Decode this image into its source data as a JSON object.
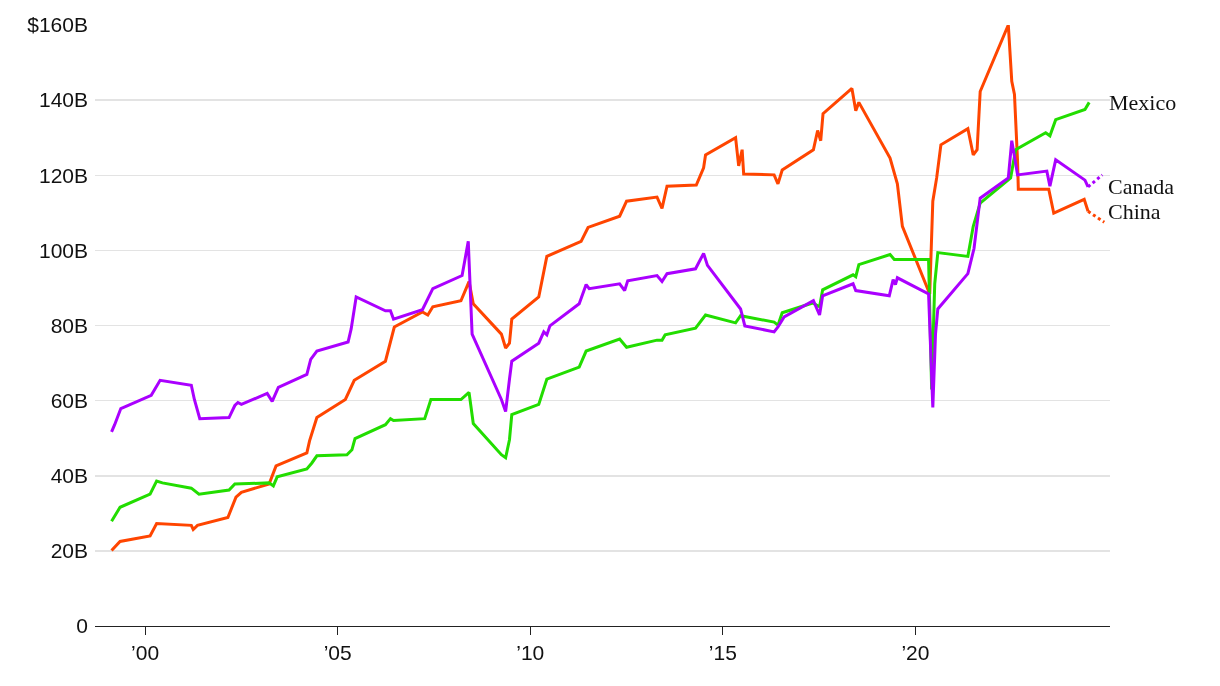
{
  "chart_data": {
    "type": "line",
    "xlim": [
      1998.7,
      2025.05
    ],
    "xticks": [
      {
        "value": 2000,
        "label": "’00"
      },
      {
        "value": 2005,
        "label": "’05"
      },
      {
        "value": 2010,
        "label": "’10"
      },
      {
        "value": 2015,
        "label": "’15"
      },
      {
        "value": 2020,
        "label": "’20"
      }
    ],
    "ylim": [
      0,
      160
    ],
    "yticks": [
      {
        "value": 0,
        "label": "0"
      },
      {
        "value": 20,
        "label": "20B"
      },
      {
        "value": 40,
        "label": "40B"
      },
      {
        "value": 60,
        "label": "60B"
      },
      {
        "value": 80,
        "label": "80B"
      },
      {
        "value": 100,
        "label": "100B"
      },
      {
        "value": 120,
        "label": "120B"
      },
      {
        "value": 140,
        "label": "140B"
      },
      {
        "value": 160,
        "label": "$160B"
      }
    ],
    "grid": "y",
    "legend": false,
    "marker": "none",
    "line_style": "solid",
    "series": [
      {
        "name": "China",
        "color": "#ff4500",
        "x": [
          1999.13,
          1999.35,
          2000.13,
          2000.3,
          2001.2,
          2001.25,
          2001.36,
          2002.15,
          2002.36,
          2002.5,
          2003.22,
          2003.4,
          2004.2,
          2004.27,
          2004.46,
          2005.2,
          2005.43,
          2006.24,
          2006.47,
          2007.2,
          2007.34,
          2007.47,
          2008.2,
          2008.41,
          2008.52,
          2009.25,
          2009.36,
          2009.46,
          2009.52,
          2010.22,
          2010.43,
          2011.32,
          2011.5,
          2012.32,
          2012.5,
          2013.29,
          2013.42,
          2013.55,
          2014.31,
          2014.5,
          2014.55,
          2015.33,
          2015.41,
          2015.5,
          2015.54,
          2016.33,
          2016.43,
          2016.54,
          2017.35,
          2017.46,
          2017.54,
          2017.6,
          2018.35,
          2018.45,
          2018.53,
          2019.34,
          2019.53,
          2019.66,
          2020.37,
          2020.45,
          2020.55,
          2020.66,
          2021.36,
          2021.5,
          2021.6,
          2021.68,
          2022.41,
          2022.5,
          2022.57,
          2022.65,
          2022.67,
          2023.46,
          2023.59,
          2024.38,
          2024.48
        ],
        "values": [
          20.1,
          22.5,
          24,
          27.3,
          26.8,
          25.7,
          26.8,
          28.9,
          34.3,
          35.6,
          37.8,
          42.6,
          46.1,
          49.3,
          55.5,
          60.3,
          65.4,
          70.5,
          79.6,
          83.6,
          82.8,
          85,
          86.6,
          91.7,
          85.8,
          77.7,
          74,
          75.3,
          81.7,
          87.6,
          98.4,
          102.4,
          106.1,
          109.1,
          113.1,
          114.2,
          111.2,
          117.1,
          117.4,
          122,
          125.4,
          130,
          122.5,
          126.8,
          120.3,
          120.1,
          117.7,
          121.4,
          126.8,
          131.9,
          129.2,
          136.4,
          143.1,
          137.2,
          139.4,
          124.6,
          117.7,
          106.4,
          88.4,
          113.1,
          119.3,
          128.1,
          132.4,
          125.4,
          126.8,
          142.3,
          160,
          145,
          141.5,
          123.8,
          116.3,
          116.3,
          109.9,
          113.6,
          110.4
        ]
      },
      {
        "name": "Mexico",
        "color": "#22dd00",
        "x": [
          1999.13,
          1999.35,
          2000.13,
          2000.3,
          2000.45,
          2001.2,
          2001.4,
          2002.18,
          2002.33,
          2003.22,
          2003.33,
          2003.43,
          2004.2,
          2004.33,
          2004.46,
          2005.24,
          2005.37,
          2005.45,
          2006.24,
          2006.37,
          2006.45,
          2007.26,
          2007.42,
          2008.2,
          2008.41,
          2008.52,
          2009.25,
          2009.36,
          2009.46,
          2009.52,
          2010.22,
          2010.43,
          2011.27,
          2011.45,
          2012.32,
          2012.5,
          2013.29,
          2013.42,
          2013.5,
          2014.29,
          2014.55,
          2015.33,
          2015.46,
          2016.33,
          2016.43,
          2016.54,
          2017.33,
          2017.51,
          2017.59,
          2018.38,
          2018.45,
          2018.53,
          2019.34,
          2019.45,
          2020.34,
          2020.42,
          2020.5,
          2020.58,
          2021.36,
          2021.5,
          2021.68,
          2022.47,
          2022.6,
          2023.38,
          2023.49,
          2023.64,
          2024.4,
          2024.51
        ],
        "values": [
          27.9,
          31.6,
          35.1,
          38.6,
          38.1,
          36.7,
          35.1,
          36.2,
          37.8,
          38.1,
          37.3,
          39.7,
          41.8,
          43.4,
          45.3,
          45.6,
          46.9,
          49.9,
          53.6,
          55.2,
          54.7,
          55.2,
          60.3,
          60.3,
          62.2,
          53.9,
          45.6,
          44.8,
          49.6,
          56.3,
          59,
          65.7,
          68.9,
          73.2,
          76.4,
          74.2,
          76.1,
          76.1,
          77.5,
          79.3,
          82.8,
          80.7,
          82.6,
          80.9,
          80.1,
          83.4,
          86,
          85,
          89.5,
          93.5,
          93,
          96.2,
          98.9,
          97.6,
          97.6,
          63,
          91.1,
          99.4,
          98.4,
          106.4,
          112.6,
          119.3,
          126.8,
          131.3,
          130.5,
          134.8,
          137.5,
          139.4
        ]
      },
      {
        "name": "Canada",
        "color": "#aa00ff",
        "x": [
          1999.13,
          1999.21,
          1999.37,
          2000.16,
          2000.39,
          2001.2,
          2001.28,
          2001.42,
          2002.18,
          2002.33,
          2002.41,
          2002.5,
          2003.17,
          2003.3,
          2003.46,
          2004.2,
          2004.3,
          2004.46,
          2005.27,
          2005.35,
          2005.48,
          2006.24,
          2006.37,
          2006.45,
          2007.2,
          2007.47,
          2008.23,
          2008.39,
          2008.49,
          2009.25,
          2009.36,
          2009.46,
          2009.52,
          2010.22,
          2010.35,
          2010.43,
          2010.51,
          2011.27,
          2011.45,
          2011.53,
          2012.32,
          2012.45,
          2012.53,
          2013.29,
          2013.42,
          2013.55,
          2014.29,
          2014.5,
          2014.6,
          2015.46,
          2015.57,
          2016.33,
          2016.43,
          2016.59,
          2017.35,
          2017.51,
          2017.59,
          2018.38,
          2018.45,
          2019.32,
          2019.42,
          2019.48,
          2019.53,
          2020.34,
          2020.45,
          2020.52,
          2020.58,
          2021.36,
          2021.52,
          2021.68,
          2022.41,
          2022.5,
          2022.65,
          2023.41,
          2023.49,
          2023.64,
          2024.4,
          2024.48
        ],
        "values": [
          51.7,
          53.6,
          57.9,
          61.4,
          65.4,
          64.1,
          60.3,
          55.2,
          55.5,
          58.7,
          59.5,
          59,
          61.9,
          59.8,
          63.5,
          67,
          71,
          73.2,
          75.6,
          79.1,
          87.6,
          83.9,
          83.9,
          81.7,
          84.2,
          89.8,
          93.3,
          102.4,
          77.7,
          60.3,
          57.1,
          65.7,
          70.5,
          75.3,
          78.3,
          77.5,
          79.9,
          85.8,
          90.9,
          89.8,
          91.1,
          89.3,
          91.9,
          93.3,
          91.7,
          93.8,
          95.1,
          99.2,
          96,
          84.4,
          79.9,
          78.3,
          79.6,
          82.3,
          86.6,
          82.8,
          87.9,
          91.1,
          89.3,
          87.9,
          92.2,
          90.9,
          92.7,
          88.4,
          58.2,
          77.7,
          84.4,
          93.8,
          100.5,
          113.9,
          119.3,
          129.2,
          120.1,
          121.1,
          117.1,
          124.1,
          118.7,
          116.9
        ]
      },
      {
        "color": "#ff4500",
        "line_style": "dotted",
        "x": [
          2024.48,
          2024.9
        ],
        "values": [
          110.4,
          107.5
        ]
      },
      {
        "color": "#aa00ff",
        "line_style": "dotted",
        "x": [
          2024.48,
          2024.85
        ],
        "values": [
          116.9,
          120.1
        ]
      }
    ]
  }
}
